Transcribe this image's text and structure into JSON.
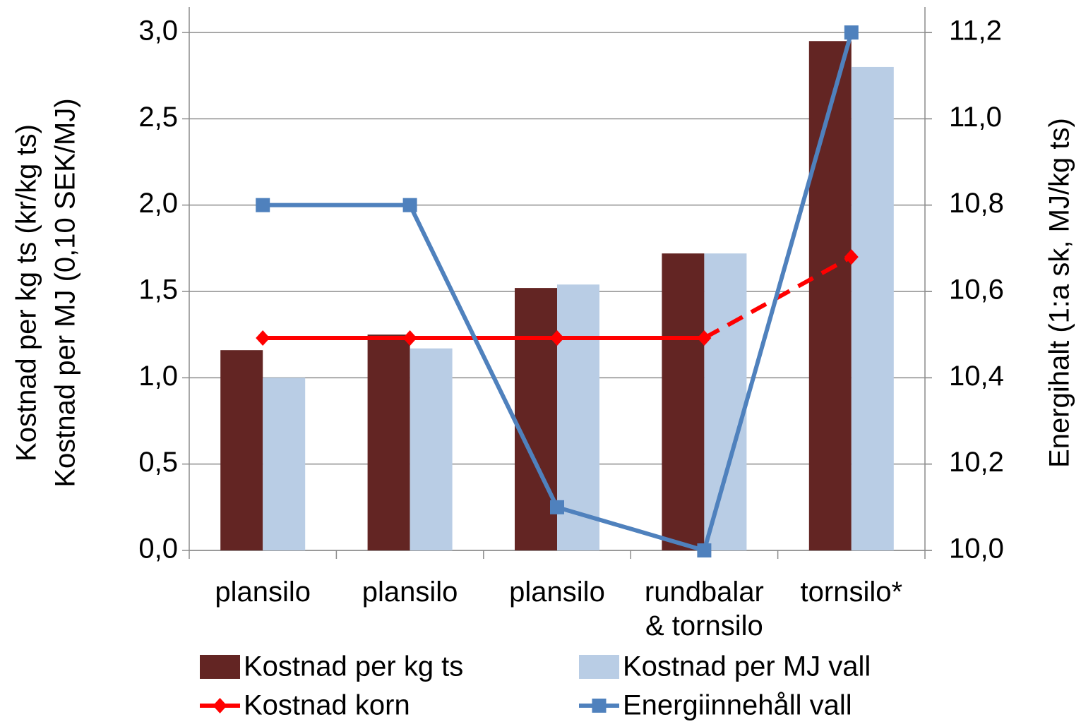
{
  "chart_data": {
    "type": "bar",
    "ylabel": [
      "Kostnad per kg ts (kr/kg ts)",
      "Kostnad per MJ (0,10 SEK/MJ)"
    ],
    "y2label": "Energihalt (1:a sk, MJ/kg ts)",
    "categories": [
      "plansilo",
      "plansilo",
      "plansilo",
      "rundbalar\n& tornsilo",
      "tornsilo*"
    ],
    "series": [
      {
        "name": "Kostnad per kg ts",
        "type": "bar",
        "color": "#632523",
        "values": [
          1.16,
          1.25,
          1.52,
          1.72,
          2.95
        ]
      },
      {
        "name": "Kostnad per MJ vall",
        "type": "bar",
        "color": "#b9cde5",
        "values": [
          1.0,
          1.17,
          1.54,
          1.72,
          2.8
        ]
      },
      {
        "name": "Kostnad korn",
        "type": "line",
        "marker": "diamond",
        "color": "#ff0000",
        "dash_last_segment": true,
        "values": [
          1.23,
          1.23,
          1.23,
          1.23,
          1.7
        ]
      },
      {
        "name": "Energiinnehåll vall",
        "type": "line",
        "marker": "square",
        "color": "#4f81bd",
        "axis": "y2",
        "values": [
          10.8,
          10.8,
          10.1,
          10.0,
          11.2
        ]
      }
    ],
    "ylim": [
      0,
      3
    ],
    "yticks": [
      {
        "value": 0,
        "label": "0,0"
      },
      {
        "value": 0.5,
        "label": "0,5"
      },
      {
        "value": 1,
        "label": "1,0"
      },
      {
        "value": 1.5,
        "label": "1,5"
      },
      {
        "value": 2,
        "label": "2,0"
      },
      {
        "value": 2.5,
        "label": "2,5"
      },
      {
        "value": 3,
        "label": "3,0"
      }
    ],
    "y2lim": [
      10,
      11.2
    ],
    "y2ticks": [
      {
        "value": 10,
        "label": "10,0"
      },
      {
        "value": 10.2,
        "label": "10,2"
      },
      {
        "value": 10.4,
        "label": "10,4"
      },
      {
        "value": 10.6,
        "label": "10,6"
      },
      {
        "value": 10.8,
        "label": "10,8"
      },
      {
        "value": 11,
        "label": "11,0"
      },
      {
        "value": 11.2,
        "label": "11,2"
      }
    ],
    "grid": true,
    "legend": "bottom"
  }
}
